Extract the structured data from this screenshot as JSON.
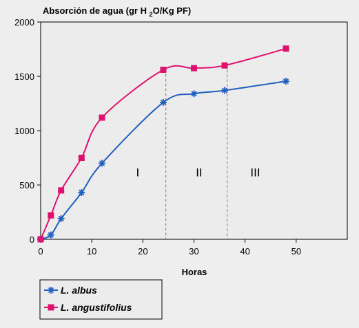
{
  "chart_data": {
    "type": "line",
    "title": "Absorción de agua (gr H 2O/Kg PF)",
    "title_main": "Absorción de agua (gr H ",
    "title_sub": "2",
    "title_end": "O/Kg PF)",
    "xlabel": "Horas",
    "ylabel": "",
    "xlim": [
      0,
      60
    ],
    "ylim": [
      0,
      2000
    ],
    "xticks": [
      0,
      10,
      20,
      30,
      40,
      50
    ],
    "yticks": [
      0,
      500,
      1000,
      1500,
      2000
    ],
    "grid": false,
    "legend_position": "bottom-left",
    "phase_boundaries": [
      24.5,
      36.5
    ],
    "phases": [
      {
        "label": "I",
        "x": 19,
        "y": 580
      },
      {
        "label": "II",
        "x": 31,
        "y": 580
      },
      {
        "label": "III",
        "x": 42,
        "y": 580
      }
    ],
    "series": [
      {
        "name": "L. albus",
        "color": "#1f5fbf",
        "marker": "asterisk",
        "x": [
          0,
          2,
          4,
          8,
          12,
          24,
          30,
          36,
          48
        ],
        "y": [
          0,
          40,
          190,
          430,
          700,
          1260,
          1340,
          1370,
          1455
        ]
      },
      {
        "name": "L. angustifolius",
        "color": "#e0106f",
        "marker": "square",
        "x": [
          0,
          2,
          4,
          8,
          12,
          24,
          30,
          36,
          48
        ],
        "y": [
          0,
          220,
          450,
          750,
          1120,
          1560,
          1575,
          1600,
          1755
        ]
      }
    ]
  }
}
